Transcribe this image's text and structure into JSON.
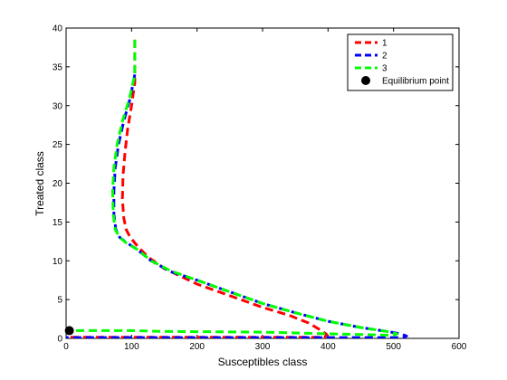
{
  "chart_data": {
    "type": "line",
    "title": "",
    "xlabel": "Susceptibles class",
    "ylabel": "Treated class",
    "xlim": [
      0,
      600
    ],
    "ylim": [
      0,
      40
    ],
    "xticks": [
      0,
      100,
      200,
      300,
      400,
      500,
      600
    ],
    "yticks": [
      0,
      5,
      10,
      15,
      20,
      25,
      30,
      35,
      40
    ],
    "grid": false,
    "legend_position": "top-right",
    "series": [
      {
        "name": "1",
        "color": "#ff0000",
        "dash": "dashed",
        "points": [
          [
            105,
            38.5
          ],
          [
            105,
            33
          ],
          [
            100,
            30
          ],
          [
            94,
            27
          ],
          [
            90,
            24
          ],
          [
            87,
            21
          ],
          [
            86,
            18
          ],
          [
            88,
            15.5
          ],
          [
            92,
            14
          ],
          [
            98,
            13
          ],
          [
            108,
            12
          ],
          [
            125,
            10.5
          ],
          [
            150,
            9
          ],
          [
            200,
            7
          ],
          [
            250,
            5.5
          ],
          [
            300,
            4
          ],
          [
            340,
            3
          ],
          [
            370,
            2
          ],
          [
            390,
            1
          ],
          [
            398,
            0.5
          ],
          [
            395,
            0.15
          ],
          [
            0,
            0.15
          ]
        ]
      },
      {
        "name": "2",
        "color": "#0000ff",
        "dash": "dashed",
        "points": [
          [
            105,
            34
          ],
          [
            98,
            31
          ],
          [
            88,
            28
          ],
          [
            80,
            25
          ],
          [
            75,
            22
          ],
          [
            73,
            19
          ],
          [
            73,
            16
          ],
          [
            76,
            14
          ],
          [
            82,
            13
          ],
          [
            93,
            12.3
          ],
          [
            108,
            11.5
          ],
          [
            130,
            10
          ],
          [
            160,
            8.6
          ],
          [
            200,
            7.5
          ],
          [
            250,
            6
          ],
          [
            300,
            4.5
          ],
          [
            350,
            3.3
          ],
          [
            400,
            2.2
          ],
          [
            450,
            1.4
          ],
          [
            490,
            0.9
          ],
          [
            510,
            0.6
          ],
          [
            520,
            0.3
          ],
          [
            515,
            0.1
          ],
          [
            0,
            0.1
          ]
        ]
      },
      {
        "name": "3",
        "color": "#00ff00",
        "dash": "dashed",
        "points": [
          [
            105,
            38.5
          ],
          [
            105,
            34
          ],
          [
            97,
            31
          ],
          [
            86,
            28
          ],
          [
            78,
            25
          ],
          [
            73,
            22
          ],
          [
            71,
            19
          ],
          [
            72,
            16
          ],
          [
            75,
            14
          ],
          [
            82,
            13
          ],
          [
            92,
            12.3
          ],
          [
            108,
            11.5
          ],
          [
            130,
            10
          ],
          [
            160,
            8.7
          ],
          [
            200,
            7.5
          ],
          [
            250,
            6
          ],
          [
            300,
            4.5
          ],
          [
            350,
            3.3
          ],
          [
            400,
            2.2
          ],
          [
            450,
            1.4
          ],
          [
            490,
            0.9
          ],
          [
            505,
            0.6
          ],
          [
            500,
            0.4
          ],
          [
            400,
            0.6
          ],
          [
            300,
            0.8
          ],
          [
            150,
            0.9
          ],
          [
            100,
            1
          ],
          [
            5,
            1
          ]
        ]
      }
    ],
    "markers": [
      {
        "name": "Equilibrium point",
        "color": "#000000",
        "x": 5,
        "y": 1
      }
    ],
    "legend": [
      {
        "label": "1",
        "color": "#ff0000",
        "kind": "line"
      },
      {
        "label": "2",
        "color": "#0000ff",
        "kind": "line"
      },
      {
        "label": "3",
        "color": "#00ff00",
        "kind": "line"
      },
      {
        "label": "Equilibrium point",
        "color": "#000000",
        "kind": "marker"
      }
    ]
  }
}
